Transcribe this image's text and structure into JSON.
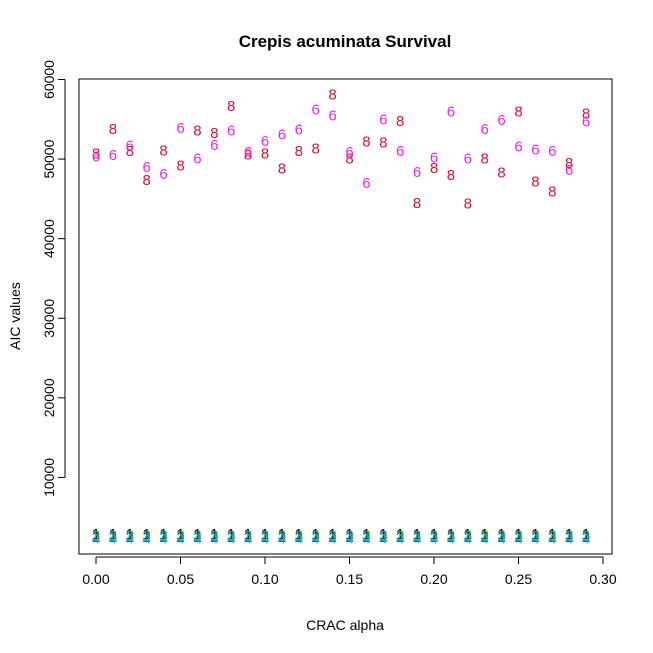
{
  "chart_data": {
    "type": "scatter",
    "title": "Crepis acuminata Survival",
    "xlabel": "CRAC alpha",
    "ylabel": "AIC values",
    "xlim": [
      0.0,
      0.3
    ],
    "ylim": [
      0,
      60000
    ],
    "x_ticks": [
      "0.00",
      "0.05",
      "0.10",
      "0.15",
      "0.20",
      "0.25",
      "0.30"
    ],
    "y_ticks": [
      "10000",
      "20000",
      "30000",
      "40000",
      "50000",
      "60000"
    ],
    "x": [
      0.0,
      0.01,
      0.02,
      0.03,
      0.04,
      0.05,
      0.06,
      0.07,
      0.08,
      0.09,
      0.1,
      0.11,
      0.12,
      0.13,
      0.14,
      0.15,
      0.16,
      0.17,
      0.18,
      0.19,
      0.2,
      0.21,
      0.22,
      0.23,
      0.24,
      0.25,
      0.26,
      0.27,
      0.28,
      0.29
    ],
    "grid": false,
    "legend": "none",
    "series": [
      {
        "symbol": "8",
        "color": "#dd1133",
        "values": [
          50700,
          53800,
          51000,
          47400,
          51100,
          49200,
          53600,
          53300,
          56700,
          50600,
          50700,
          48800,
          51000,
          51300,
          58100,
          50100,
          52200,
          52100,
          54800,
          44500,
          48900,
          48000,
          44400,
          50100,
          48300,
          56000,
          47200,
          45900,
          49500,
          55700
        ]
      },
      {
        "symbol": "6",
        "color": "#ee22ee",
        "values": [
          50300,
          50500,
          51700,
          49000,
          48100,
          53900,
          50100,
          51800,
          53600,
          50900,
          52300,
          53100,
          53700,
          56200,
          55500,
          50900,
          47000,
          55000,
          51000,
          48400,
          50200,
          56000,
          50100,
          53800,
          54900,
          51600,
          51200,
          51000,
          48600,
          54700
        ]
      },
      {
        "symbol": "1",
        "color": "#000000",
        "values": [
          2900,
          2900,
          2900,
          2900,
          2900,
          2900,
          2900,
          2900,
          2900,
          2900,
          2900,
          2900,
          2900,
          2900,
          2900,
          2900,
          2900,
          2900,
          2900,
          2900,
          2900,
          2900,
          2900,
          2900,
          2900,
          2900,
          2900,
          2900,
          2900,
          2900
        ]
      },
      {
        "symbol": "2",
        "color": "#1144ee",
        "values": [
          2500,
          2500,
          2500,
          2500,
          2500,
          2500,
          2500,
          2500,
          2500,
          2500,
          2500,
          2500,
          2500,
          2500,
          2500,
          2500,
          2500,
          2500,
          2500,
          2500,
          2500,
          2500,
          2500,
          2500,
          2500,
          2500,
          2500,
          2500,
          2500,
          2500
        ]
      },
      {
        "symbol": "4",
        "color": "#22bbdd",
        "values": [
          2300,
          2300,
          2300,
          2300,
          2300,
          2300,
          2300,
          2300,
          2300,
          2300,
          2300,
          2300,
          2300,
          2300,
          2300,
          2300,
          2300,
          2300,
          2300,
          2300,
          2300,
          2300,
          2300,
          2300,
          2300,
          2300,
          2300,
          2300,
          2300,
          2300
        ]
      },
      {
        "symbol": "3",
        "color": "#22aa33",
        "values": [
          2700,
          2700,
          2700,
          2700,
          2700,
          2700,
          2700,
          2700,
          2700,
          2700,
          2700,
          2700,
          2700,
          2700,
          2700,
          2700,
          2700,
          2700,
          2700,
          2700,
          2700,
          2700,
          2700,
          2700,
          2700,
          2700,
          2700,
          2700,
          2700,
          2700
        ]
      }
    ]
  }
}
